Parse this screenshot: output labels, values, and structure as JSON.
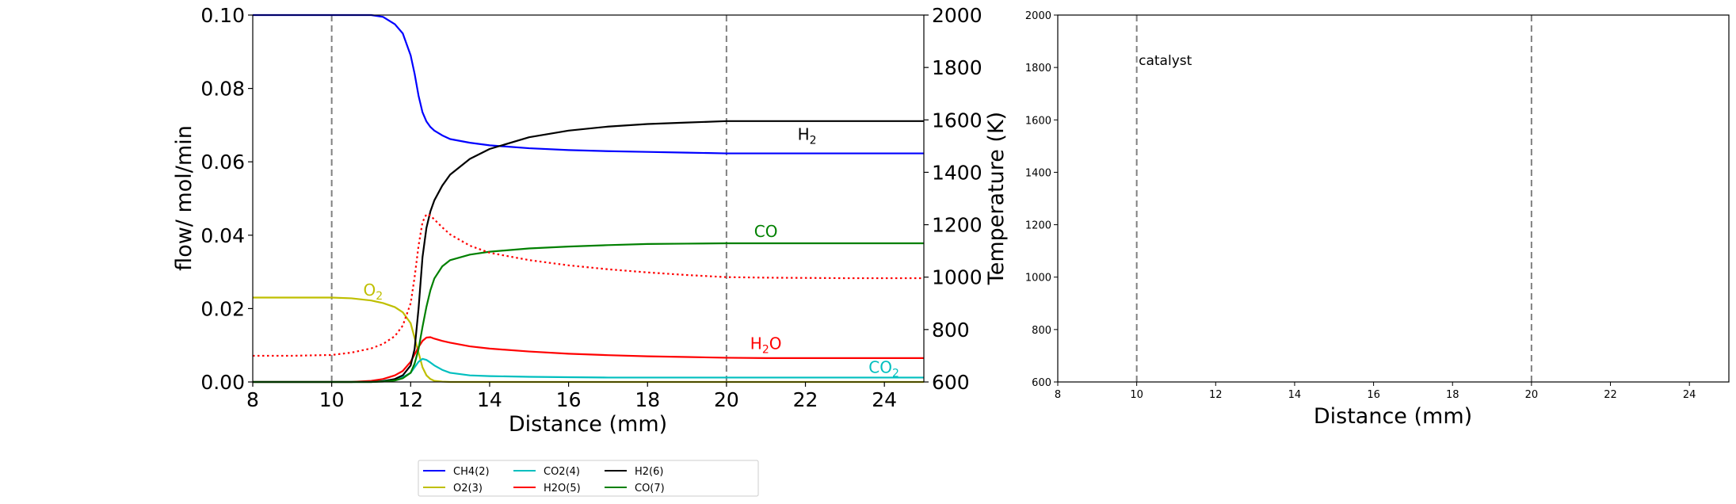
{
  "chart_data": [
    {
      "type": "line",
      "xlabel": "Distance (mm)",
      "ylabel": "flow/ mol/min",
      "y2label": "Temperature (K)",
      "xlim": [
        8,
        25
      ],
      "ylim": [
        0,
        0.1
      ],
      "y2lim": [
        600,
        2000
      ],
      "xticks": [
        "8",
        "10",
        "12",
        "14",
        "16",
        "18",
        "20",
        "22",
        "24"
      ],
      "yticks": [
        "0.00",
        "0.02",
        "0.04",
        "0.06",
        "0.08",
        "0.10"
      ],
      "y2ticks": [
        "600",
        "800",
        "1000",
        "1200",
        "1400",
        "1600",
        "1800",
        "2000"
      ],
      "vlines": [
        10,
        20
      ],
      "x": [
        8,
        9,
        10,
        10.5,
        11,
        11.3,
        11.6,
        11.8,
        12.0,
        12.1,
        12.2,
        12.3,
        12.4,
        12.5,
        12.6,
        12.8,
        13.0,
        13.5,
        14,
        15,
        16,
        17,
        18,
        19,
        20,
        21,
        22,
        23,
        24,
        25
      ],
      "series": [
        {
          "name": "CH4(2)",
          "color": "#0000ff",
          "style": "solid",
          "values": [
            0.1,
            0.1,
            0.1,
            0.1,
            0.1,
            0.0995,
            0.0975,
            0.095,
            0.089,
            0.084,
            0.078,
            0.0735,
            0.071,
            0.0695,
            0.0685,
            0.0672,
            0.0662,
            0.0652,
            0.0645,
            0.0637,
            0.0632,
            0.0629,
            0.0627,
            0.0625,
            0.0623,
            0.0623,
            0.0623,
            0.0623,
            0.0623,
            0.0623
          ]
        },
        {
          "name": "O2(3)",
          "color": "#bfbf00",
          "style": "solid",
          "values": [
            0.023,
            0.023,
            0.023,
            0.0228,
            0.0222,
            0.0215,
            0.0204,
            0.019,
            0.016,
            0.012,
            0.008,
            0.004,
            0.0018,
            0.0008,
            0.0003,
            0.0001,
            0,
            0,
            0,
            0,
            0,
            0,
            0,
            0,
            0,
            0,
            0,
            0,
            0,
            0
          ]
        },
        {
          "name": "CO2(4)",
          "color": "#00bfbf",
          "style": "solid",
          "values": [
            0,
            0,
            0,
            0,
            0.0001,
            0.0003,
            0.0007,
            0.0013,
            0.0025,
            0.004,
            0.0055,
            0.0063,
            0.006,
            0.0053,
            0.0045,
            0.0033,
            0.0025,
            0.0018,
            0.0016,
            0.0014,
            0.0013,
            0.0012,
            0.0012,
            0.0012,
            0.0012,
            0.0012,
            0.0012,
            0.0012,
            0.0012,
            0.0012
          ]
        },
        {
          "name": "H2O(5)",
          "color": "#ff0000",
          "style": "solid",
          "values": [
            0,
            0,
            0,
            0,
            0.0003,
            0.0008,
            0.0018,
            0.003,
            0.0055,
            0.0075,
            0.0095,
            0.0112,
            0.0121,
            0.0122,
            0.0118,
            0.0112,
            0.0107,
            0.0097,
            0.0091,
            0.0083,
            0.0077,
            0.0073,
            0.007,
            0.0068,
            0.0066,
            0.0065,
            0.0065,
            0.0065,
            0.0065,
            0.0065
          ]
        },
        {
          "name": "H2(6)",
          "color": "#000000",
          "style": "solid",
          "values": [
            0,
            0,
            0,
            0,
            0,
            0.0002,
            0.0008,
            0.0018,
            0.0045,
            0.009,
            0.02,
            0.034,
            0.042,
            0.0465,
            0.0495,
            0.0535,
            0.0565,
            0.0608,
            0.0635,
            0.0667,
            0.0685,
            0.0696,
            0.0703,
            0.0707,
            0.0711,
            0.0711,
            0.0711,
            0.0711,
            0.0711,
            0.0711
          ]
        },
        {
          "name": "CO(7)",
          "color": "#008000",
          "style": "solid",
          "values": [
            0,
            0,
            0,
            0,
            0,
            0.0001,
            0.0004,
            0.001,
            0.0025,
            0.005,
            0.009,
            0.015,
            0.0205,
            0.025,
            0.0282,
            0.0315,
            0.0332,
            0.0347,
            0.0355,
            0.0364,
            0.0369,
            0.0373,
            0.0376,
            0.0377,
            0.0378,
            0.0378,
            0.0378,
            0.0378,
            0.0378,
            0.0378
          ]
        }
      ],
      "temperature": {
        "color": "#ff0000",
        "style": "dotted",
        "values": [
          700,
          700,
          703,
          712,
          728,
          745,
          775,
          815,
          900,
          1000,
          1120,
          1210,
          1240,
          1235,
          1220,
          1190,
          1163,
          1120,
          1093,
          1065,
          1045,
          1030,
          1018,
          1008,
          1000,
          998,
          997,
          996,
          996,
          996
        ]
      },
      "annotations": [
        {
          "text": "H",
          "sub": "2",
          "x": 21.8,
          "y": 0.066,
          "color": "#000000"
        },
        {
          "text": "CO",
          "sub": "",
          "x": 20.7,
          "y": 0.0395,
          "color": "#008000"
        },
        {
          "text": "O",
          "sub": "2",
          "x": 10.8,
          "y": 0.0235,
          "color": "#bfbf00"
        },
        {
          "text": "H",
          "sub": "2",
          "after": "O",
          "x": 20.6,
          "y": 0.009,
          "color": "#ff0000"
        },
        {
          "text": "CO",
          "sub": "2",
          "x": 23.6,
          "y": 0.0025,
          "color": "#00bfbf"
        }
      ]
    },
    {
      "type": "line",
      "xlabel": "Distance (mm)",
      "xlim": [
        8,
        25
      ],
      "ylim": [
        600,
        2000
      ],
      "xticks": [
        "8",
        "10",
        "12",
        "14",
        "16",
        "18",
        "20",
        "22",
        "24"
      ],
      "yticks": [
        "600",
        "800",
        "1000",
        "1200",
        "1400",
        "1600",
        "1800",
        "2000"
      ],
      "vlines": [
        10,
        20
      ],
      "annotations": [
        {
          "text": "catalyst",
          "x": 10.05,
          "y": 1810
        }
      ],
      "series": []
    }
  ]
}
